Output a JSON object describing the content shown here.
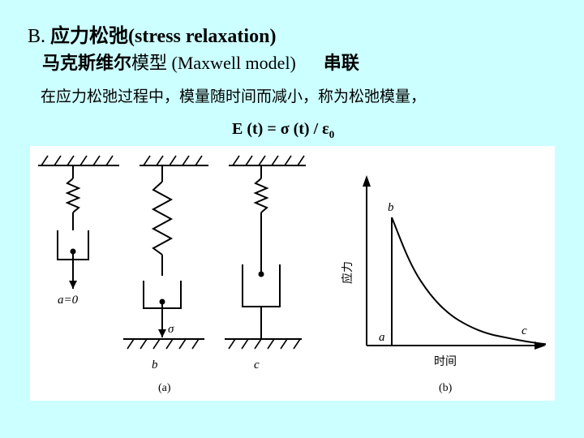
{
  "heading": {
    "prefix": "B. ",
    "title_cn": "应力松弛",
    "title_en": "(stress relaxation)"
  },
  "model": {
    "name_cn_bold": "马克斯维尔",
    "name_cn": "模型",
    "name_en": " (Maxwell model)",
    "series": "串联"
  },
  "description": "在应力松弛过程中，模量随时间而减小，称为松弛模量，",
  "formula": {
    "main": "E (t) = σ (t) / ε",
    "subscript": "0"
  },
  "figure": {
    "panel_a_caption": "(a)",
    "panel_b_caption": "(b)",
    "a_eq_zero": "a=0",
    "sigma_label": "σ",
    "label_b": "b",
    "label_c": "c",
    "y_axis_label": "应力",
    "x_axis_label": "时间",
    "curve_label_a": "a",
    "curve_label_b": "b",
    "curve_label_c": "c"
  },
  "chart_data": {
    "type": "line",
    "title": "",
    "xlabel": "时间",
    "ylabel": "应力",
    "series": [
      {
        "x": [
          0,
          0,
          1,
          2,
          3,
          4,
          5,
          6,
          7,
          8
        ],
        "y": [
          0,
          1.0,
          0.62,
          0.39,
          0.24,
          0.15,
          0.09,
          0.06,
          0.03,
          0.01
        ]
      }
    ],
    "point_labels": [
      "a",
      "b",
      "c"
    ]
  }
}
